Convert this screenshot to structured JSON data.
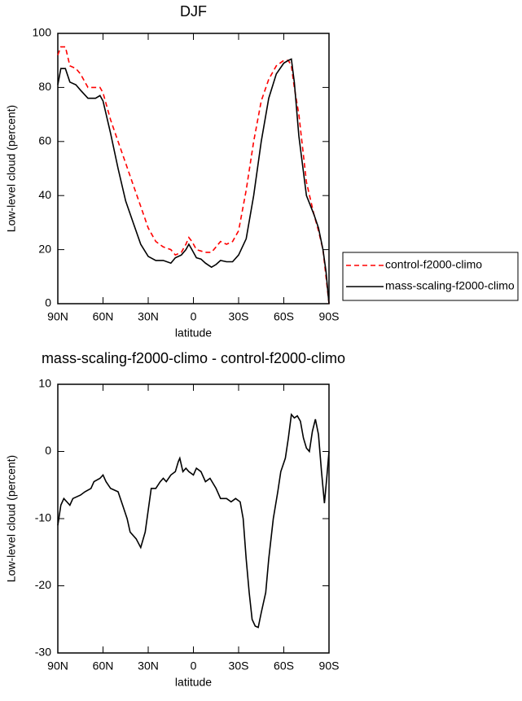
{
  "chart_data": [
    {
      "type": "line",
      "title": "DJF",
      "xlabel": "latitude",
      "ylabel": "Low-level cloud (percent)",
      "xlim": [
        90,
        -90
      ],
      "xticks": [
        {
          "value": 90,
          "label": "90N"
        },
        {
          "value": 60,
          "label": "60N"
        },
        {
          "value": 30,
          "label": "30N"
        },
        0,
        {
          "value": -30,
          "label": "30S"
        },
        {
          "value": -60,
          "label": "60S"
        },
        {
          "value": -90,
          "label": "90S"
        }
      ],
      "ylim": [
        0,
        100
      ],
      "yticks": [
        0,
        20,
        40,
        60,
        80,
        100
      ],
      "legend": "right",
      "x": [
        90,
        88,
        85,
        82,
        78,
        75,
        70,
        65,
        62,
        60,
        55,
        50,
        45,
        40,
        35,
        30,
        25,
        20,
        15,
        12,
        8,
        5,
        3,
        1,
        -2,
        -5,
        -8,
        -12,
        -15,
        -18,
        -22,
        -26,
        -30,
        -35,
        -40,
        -45,
        -50,
        -55,
        -60,
        -63,
        -65,
        -67,
        -70,
        -75,
        -80,
        -83,
        -86,
        -88,
        -90
      ],
      "series": [
        {
          "name": "control-f2000-climo",
          "color": "#ff0000",
          "linestyle": "dashed",
          "values": [
            92,
            95,
            95,
            88,
            87,
            85,
            80,
            80,
            80,
            78,
            68,
            60,
            52,
            44,
            36,
            28,
            23,
            21,
            20,
            18,
            19,
            22,
            24.5,
            23,
            20,
            19.5,
            19,
            19,
            21,
            23,
            22,
            23,
            27,
            42,
            60,
            75,
            83,
            88,
            90,
            90,
            88,
            80,
            70,
            45,
            33,
            27,
            20,
            10,
            0
          ]
        },
        {
          "name": "mass-scaling-f2000-climo",
          "color": "#000000",
          "linestyle": "solid",
          "values": [
            81,
            87,
            87,
            82,
            81,
            79,
            76,
            76,
            77,
            75,
            63,
            50,
            38,
            30,
            22,
            17.5,
            16,
            16,
            15,
            17,
            18,
            20,
            22,
            20,
            17,
            16.5,
            15,
            13.5,
            14.5,
            16,
            15.5,
            15.5,
            18,
            24,
            40,
            60,
            76,
            85,
            89,
            90,
            90.5,
            82,
            62,
            40,
            33,
            28,
            20,
            12,
            0
          ]
        }
      ]
    },
    {
      "type": "line",
      "title": "mass-scaling-f2000-climo - control-f2000-climo",
      "xlabel": "latitude",
      "ylabel": "Low-level cloud (percent)",
      "xlim": [
        90,
        -90
      ],
      "xticks": [
        {
          "value": 90,
          "label": "90N"
        },
        {
          "value": 60,
          "label": "60N"
        },
        {
          "value": 30,
          "label": "30N"
        },
        0,
        {
          "value": -30,
          "label": "30S"
        },
        {
          "value": -60,
          "label": "60S"
        },
        {
          "value": -90,
          "label": "90S"
        }
      ],
      "ylim": [
        -30,
        10
      ],
      "yticks": [
        -30,
        -20,
        -10,
        0,
        10
      ],
      "x": [
        90,
        88,
        86,
        84,
        82,
        80,
        75,
        72,
        68,
        66,
        62,
        60,
        58,
        55,
        50,
        47,
        44,
        42,
        38,
        35,
        32,
        28,
        25,
        22,
        20,
        18,
        15,
        12,
        10,
        9,
        7,
        5,
        3,
        0,
        -2,
        -5,
        -8,
        -11,
        -15,
        -18,
        -22,
        -25,
        -28,
        -31,
        -33,
        -35,
        -37,
        -39,
        -41,
        -43,
        -45,
        -48,
        -50,
        -53,
        -56,
        -58,
        -61,
        -63,
        -65,
        -67,
        -69,
        -71,
        -73,
        -75,
        -77,
        -79,
        -81,
        -83,
        -85,
        -87,
        -88.5,
        -90
      ],
      "series": [
        {
          "color": "#000000",
          "linestyle": "solid",
          "values": [
            -11,
            -8,
            -7,
            -7.5,
            -8,
            -7,
            -6.5,
            -6,
            -5.5,
            -4.5,
            -4,
            -3.5,
            -4.5,
            -5.5,
            -6,
            -8,
            -10,
            -12,
            -13,
            -14.3,
            -12,
            -5.5,
            -5.5,
            -4.5,
            -4,
            -4.5,
            -3.5,
            -3,
            -1.5,
            -1,
            -3,
            -2.5,
            -3,
            -3.5,
            -2.5,
            -3,
            -4.5,
            -4,
            -5.5,
            -7,
            -7,
            -7.5,
            -7,
            -7.5,
            -10,
            -16,
            -21,
            -25,
            -26,
            -26.2,
            -24,
            -21,
            -16,
            -10,
            -6,
            -3,
            -1,
            2,
            5.5,
            5,
            5.3,
            4.5,
            2,
            0.5,
            0,
            3,
            4.8,
            2.5,
            -3,
            -7.7,
            -4,
            0
          ]
        }
      ]
    }
  ]
}
